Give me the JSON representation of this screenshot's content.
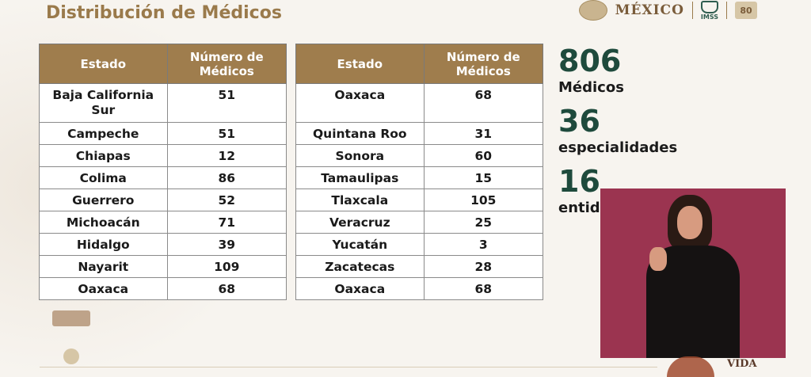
{
  "header": {
    "title": "Distribución de Médicos",
    "brand_mexico": "MÉXICO",
    "brand_imss": "IMSS",
    "brand_anniv": "80"
  },
  "colors": {
    "header_bg": "#9f7d4d",
    "title": "#9a7a4b",
    "stat_number": "#1e4a3c",
    "interpreter_bg": "#9b3450"
  },
  "table_left": {
    "headers": [
      "Estado",
      "Número de Médicos"
    ],
    "rows": [
      {
        "estado": "Baja California Sur",
        "medicos": "51"
      },
      {
        "estado": "Campeche",
        "medicos": "51"
      },
      {
        "estado": "Chiapas",
        "medicos": "12"
      },
      {
        "estado": "Colima",
        "medicos": "86"
      },
      {
        "estado": "Guerrero",
        "medicos": "52"
      },
      {
        "estado": "Michoacán",
        "medicos": "71"
      },
      {
        "estado": "Hidalgo",
        "medicos": "39"
      },
      {
        "estado": "Nayarit",
        "medicos": "109"
      },
      {
        "estado": "Oaxaca",
        "medicos": "68"
      }
    ]
  },
  "table_right": {
    "headers": [
      "Estado",
      "Número de Médicos"
    ],
    "rows": [
      {
        "estado": "Oaxaca",
        "medicos": "68"
      },
      {
        "estado": "Quintana Roo",
        "medicos": "31"
      },
      {
        "estado": "Sonora",
        "medicos": "60"
      },
      {
        "estado": "Tamaulipas",
        "medicos": "15"
      },
      {
        "estado": "Tlaxcala",
        "medicos": "105"
      },
      {
        "estado": "Veracruz",
        "medicos": "25"
      },
      {
        "estado": "Yucatán",
        "medicos": "3"
      },
      {
        "estado": "Zacatecas",
        "medicos": "28"
      },
      {
        "estado": "Oaxaca",
        "medicos": "68"
      }
    ]
  },
  "stats": [
    {
      "number": "806",
      "label": "Médicos"
    },
    {
      "number": "36",
      "label": "especialidades"
    },
    {
      "number": "16",
      "label": "entid"
    }
  ],
  "footer": {
    "vida_text": "VIDA"
  }
}
